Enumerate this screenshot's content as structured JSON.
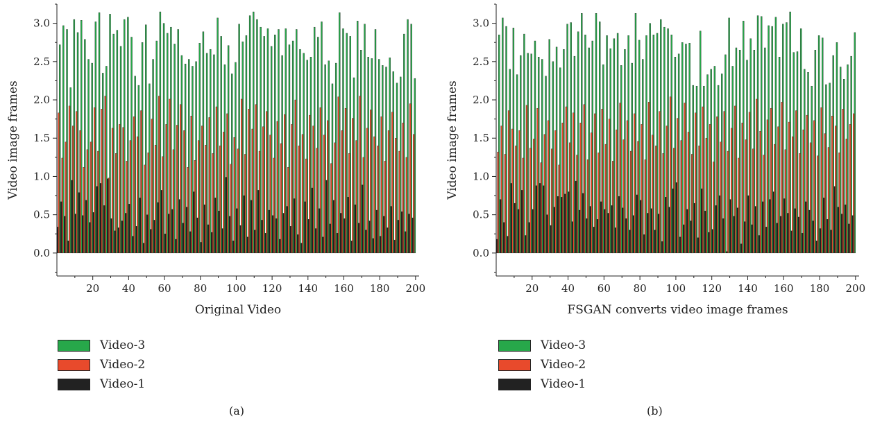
{
  "chart_data": [
    {
      "type": "bar",
      "panel_label": "(a)",
      "xlabel": "Original Video",
      "ylabel": "Video image frames",
      "xlim": [
        0,
        202
      ],
      "ylim": [
        -0.3,
        3.25
      ],
      "xticks": [
        20,
        40,
        60,
        80,
        100,
        120,
        140,
        160,
        180,
        200
      ],
      "yticks": [
        0.0,
        0.5,
        1.0,
        1.5,
        2.0,
        2.5,
        3.0
      ],
      "grid": false,
      "legend_position": "below-left",
      "x": [
        1,
        3,
        5,
        7,
        9,
        11,
        13,
        15,
        17,
        19,
        21,
        23,
        25,
        27,
        29,
        31,
        33,
        35,
        37,
        39,
        41,
        43,
        45,
        47,
        49,
        51,
        53,
        55,
        57,
        59,
        61,
        63,
        65,
        67,
        69,
        71,
        73,
        75,
        77,
        79,
        81,
        83,
        85,
        87,
        89,
        91,
        93,
        95,
        97,
        99,
        101,
        103,
        105,
        107,
        109,
        111,
        113,
        115,
        117,
        119,
        121,
        123,
        125,
        127,
        129,
        131,
        133,
        135,
        137,
        139,
        141,
        143,
        145,
        147,
        149,
        151,
        153,
        155,
        157,
        159,
        161,
        163,
        165,
        167,
        169,
        171,
        173,
        175,
        177,
        179,
        181,
        183,
        185,
        187,
        189,
        191,
        193,
        195,
        197,
        199
      ],
      "series": [
        {
          "name": "Video-3",
          "color": "#27a84a",
          "values": [
            2.72,
            2.97,
            2.92,
            2.16,
            3.05,
            2.88,
            3.04,
            2.79,
            2.53,
            2.48,
            3.02,
            3.14,
            2.35,
            2.44,
            3.12,
            2.86,
            2.91,
            2.7,
            3.05,
            3.08,
            2.82,
            2.31,
            2.19,
            2.75,
            2.98,
            2.21,
            2.53,
            2.77,
            3.15,
            3.0,
            2.87,
            2.95,
            2.73,
            2.92,
            2.58,
            2.47,
            2.53,
            2.44,
            2.5,
            2.74,
            2.89,
            2.61,
            2.66,
            2.59,
            3.07,
            2.83,
            2.46,
            2.71,
            2.34,
            2.49,
            2.99,
            2.76,
            2.84,
            3.1,
            3.15,
            3.05,
            2.95,
            2.83,
            2.93,
            2.7,
            2.85,
            2.92,
            2.58,
            2.93,
            2.72,
            2.77,
            2.92,
            2.66,
            2.61,
            2.52,
            2.56,
            2.95,
            2.82,
            3.02,
            2.46,
            2.51,
            2.21,
            2.48,
            3.14,
            2.93,
            2.87,
            2.83,
            2.29,
            3.03,
            2.65,
            2.99,
            2.56,
            2.54,
            2.92,
            2.53,
            2.45,
            2.43,
            2.55,
            2.37,
            2.22,
            2.3,
            2.86,
            3.05,
            2.99,
            2.28
          ]
        },
        {
          "name": "Video-2",
          "color": "#e84a2c",
          "values": [
            1.83,
            1.24,
            1.45,
            1.92,
            1.66,
            1.85,
            1.6,
            1.12,
            1.35,
            1.45,
            1.9,
            1.33,
            1.88,
            2.05,
            0.98,
            1.63,
            1.3,
            1.68,
            1.64,
            1.2,
            1.47,
            1.78,
            1.52,
            1.86,
            1.15,
            1.31,
            1.75,
            1.41,
            2.05,
            1.26,
            1.68,
            2.01,
            1.35,
            1.67,
            1.94,
            1.6,
            1.12,
            1.79,
            1.21,
            1.47,
            1.66,
            1.41,
            1.77,
            1.3,
            1.91,
            1.4,
            1.58,
            1.82,
            1.16,
            1.51,
            1.36,
            2.01,
            1.29,
            1.88,
            1.62,
            1.94,
            1.33,
            1.65,
            1.85,
            1.54,
            1.24,
            1.72,
            1.43,
            1.81,
            1.12,
            1.68,
            2.0,
            1.4,
            1.55,
            1.23,
            1.8,
            1.66,
            1.37,
            1.9,
            1.54,
            1.73,
            1.17,
            1.44,
            2.04,
            1.6,
            1.89,
            1.3,
            1.76,
            1.47,
            2.05,
            1.25,
            1.63,
            1.87,
            1.52,
            1.4,
            1.78,
            1.2,
            1.6,
            1.84,
            1.5,
            1.33,
            1.7,
            1.25,
            1.95,
            1.55
          ]
        },
        {
          "name": "Video-1",
          "color": "#222222",
          "values": [
            0.34,
            0.67,
            0.48,
            0.16,
            0.95,
            0.51,
            0.79,
            0.49,
            0.69,
            0.4,
            0.53,
            0.87,
            0.91,
            0.62,
            0.97,
            0.45,
            0.29,
            0.33,
            0.42,
            0.52,
            0.64,
            0.22,
            0.35,
            0.72,
            0.13,
            0.5,
            0.31,
            0.43,
            0.66,
            0.82,
            0.25,
            0.51,
            0.57,
            0.18,
            0.7,
            0.39,
            0.6,
            0.28,
            0.8,
            0.46,
            0.14,
            0.63,
            0.37,
            0.27,
            0.72,
            0.55,
            0.32,
            0.99,
            0.48,
            0.16,
            0.58,
            0.36,
            0.75,
            0.21,
            0.69,
            0.3,
            0.82,
            0.43,
            0.26,
            0.56,
            0.49,
            0.45,
            0.18,
            0.52,
            0.61,
            0.35,
            0.71,
            0.24,
            0.13,
            0.67,
            0.44,
            0.85,
            0.32,
            0.58,
            0.21,
            0.95,
            0.38,
            0.69,
            0.26,
            0.52,
            0.45,
            0.73,
            0.16,
            0.63,
            0.39,
            0.89,
            0.3,
            0.42,
            0.19,
            0.56,
            0.22,
            0.48,
            0.33,
            0.61,
            0.17,
            0.43,
            0.54,
            0.28,
            0.51,
            0.46
          ]
        }
      ]
    },
    {
      "type": "bar",
      "panel_label": "(b)",
      "xlabel": "FSGAN converts video image frames",
      "ylabel": "Video image frames",
      "xlim": [
        0,
        202
      ],
      "ylim": [
        -0.3,
        3.25
      ],
      "xticks": [
        20,
        40,
        60,
        80,
        100,
        120,
        140,
        160,
        180,
        200
      ],
      "yticks": [
        0.0,
        0.5,
        1.0,
        1.5,
        2.0,
        2.5,
        3.0
      ],
      "grid": false,
      "legend_position": "below-left",
      "x": [
        1,
        3,
        5,
        7,
        9,
        11,
        13,
        15,
        17,
        19,
        21,
        23,
        25,
        27,
        29,
        31,
        33,
        35,
        37,
        39,
        41,
        43,
        45,
        47,
        49,
        51,
        53,
        55,
        57,
        59,
        61,
        63,
        65,
        67,
        69,
        71,
        73,
        75,
        77,
        79,
        81,
        83,
        85,
        87,
        89,
        91,
        93,
        95,
        97,
        99,
        101,
        103,
        105,
        107,
        109,
        111,
        113,
        115,
        117,
        119,
        121,
        123,
        125,
        127,
        129,
        131,
        133,
        135,
        137,
        139,
        141,
        143,
        145,
        147,
        149,
        151,
        153,
        155,
        157,
        159,
        161,
        163,
        165,
        167,
        169,
        171,
        173,
        175,
        177,
        179,
        181,
        183,
        185,
        187,
        189,
        191,
        193,
        195,
        197,
        199
      ],
      "series": [
        {
          "name": "Video-3",
          "color": "#27a84a",
          "values": [
            2.85,
            3.07,
            2.96,
            2.4,
            2.94,
            2.33,
            2.58,
            2.86,
            2.61,
            2.6,
            2.77,
            2.56,
            2.53,
            2.31,
            2.79,
            2.5,
            2.69,
            2.42,
            2.66,
            2.99,
            3.01,
            2.57,
            2.89,
            3.13,
            2.85,
            2.68,
            2.77,
            3.13,
            3.02,
            2.46,
            2.84,
            2.67,
            2.8,
            2.87,
            2.45,
            2.66,
            2.84,
            2.48,
            3.13,
            2.78,
            2.53,
            2.84,
            3.0,
            2.85,
            2.87,
            3.05,
            2.95,
            2.93,
            2.85,
            2.56,
            2.6,
            2.75,
            2.73,
            2.74,
            2.19,
            2.18,
            2.9,
            2.18,
            2.33,
            2.4,
            2.44,
            2.19,
            2.34,
            2.59,
            3.07,
            2.44,
            2.68,
            2.65,
            3.03,
            2.52,
            2.8,
            2.65,
            3.1,
            3.09,
            2.68,
            2.97,
            2.96,
            3.08,
            2.56,
            2.99,
            3.01,
            3.15,
            2.62,
            2.63,
            2.93,
            2.4,
            2.36,
            2.18,
            2.65,
            2.84,
            2.81,
            2.2,
            2.22,
            2.58,
            2.75,
            2.43,
            2.27,
            2.46,
            2.57,
            2.88
          ]
        },
        {
          "name": "Video-2",
          "color": "#e84a2c",
          "values": [
            1.32,
            1.66,
            1.29,
            1.86,
            1.62,
            1.4,
            1.6,
            1.24,
            1.93,
            1.37,
            1.49,
            1.89,
            1.18,
            1.55,
            1.73,
            1.36,
            1.6,
            1.15,
            1.7,
            1.91,
            1.44,
            1.83,
            1.28,
            1.7,
            1.94,
            1.22,
            1.57,
            1.82,
            1.31,
            1.88,
            1.42,
            1.75,
            1.2,
            1.61,
            1.96,
            1.48,
            1.73,
            1.33,
            1.82,
            1.46,
            1.68,
            1.22,
            1.97,
            1.54,
            1.4,
            1.85,
            1.3,
            1.66,
            2.04,
            1.37,
            1.76,
            1.47,
            1.96,
            1.58,
            1.29,
            1.83,
            1.4,
            1.91,
            1.5,
            1.68,
            1.19,
            1.78,
            1.45,
            1.85,
            1.33,
            1.63,
            1.92,
            1.24,
            1.7,
            1.48,
            1.84,
            1.36,
            2.01,
            1.59,
            1.28,
            1.74,
            1.89,
            1.42,
            1.65,
            1.97,
            1.35,
            1.71,
            1.52,
            1.86,
            1.3,
            1.61,
            1.8,
            1.44,
            1.73,
            1.27,
            1.9,
            1.56,
            1.38,
            1.79,
            1.66,
            1.31,
            1.88,
            1.49,
            1.68,
            1.82
          ]
        },
        {
          "name": "Video-1",
          "color": "#222222",
          "values": [
            0.18,
            0.7,
            0.4,
            0.22,
            0.91,
            0.65,
            0.57,
            0.82,
            0.23,
            0.4,
            0.57,
            0.88,
            0.91,
            0.88,
            0.5,
            0.36,
            0.6,
            0.74,
            0.73,
            0.77,
            0.8,
            0.41,
            0.94,
            0.56,
            0.78,
            0.45,
            0.61,
            0.34,
            0.44,
            0.67,
            0.57,
            0.52,
            0.62,
            0.33,
            0.74,
            0.59,
            0.45,
            0.3,
            0.49,
            0.76,
            0.69,
            0.24,
            0.52,
            0.58,
            0.3,
            0.51,
            0.15,
            0.73,
            0.6,
            0.84,
            0.92,
            0.21,
            0.37,
            0.57,
            0.42,
            0.65,
            0.2,
            0.84,
            0.55,
            0.27,
            0.31,
            0.62,
            0.75,
            0.45,
            0.02,
            0.7,
            0.48,
            0.59,
            0.12,
            0.41,
            0.75,
            0.37,
            0.61,
            0.23,
            0.67,
            0.34,
            0.7,
            0.8,
            0.39,
            0.48,
            0.71,
            0.52,
            0.29,
            0.58,
            0.47,
            0.26,
            0.67,
            0.56,
            0.42,
            0.16,
            0.32,
            0.72,
            0.44,
            0.3,
            0.87,
            0.6,
            0.51,
            0.63,
            0.38,
            0.49
          ]
        }
      ]
    }
  ]
}
